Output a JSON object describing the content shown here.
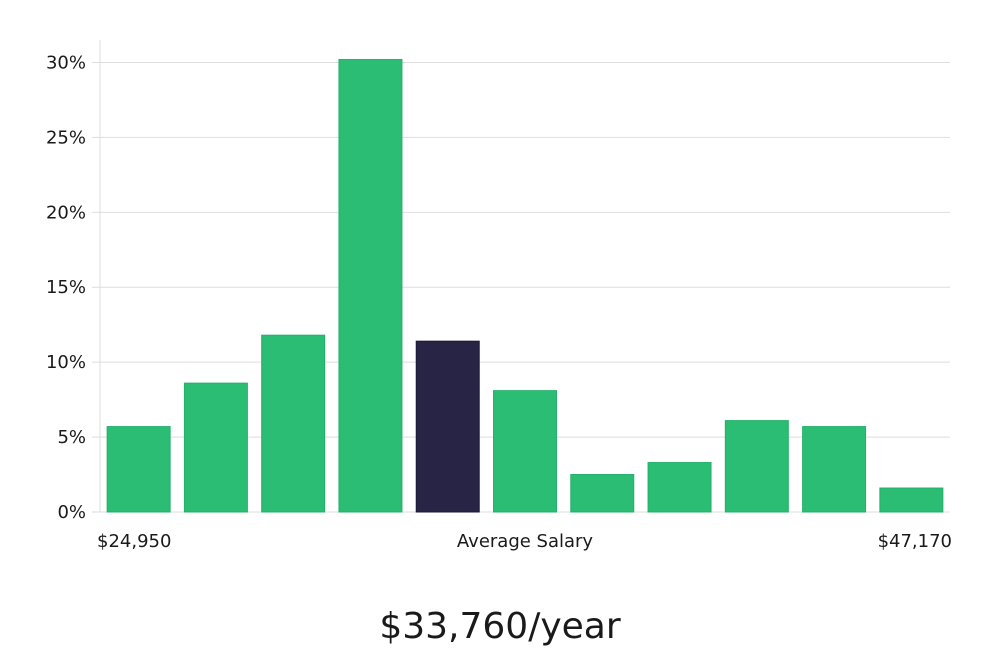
{
  "chart_data": {
    "type": "bar",
    "values": [
      5.7,
      8.6,
      11.8,
      30.2,
      11.4,
      8.1,
      2.5,
      3.3,
      6.1,
      5.7,
      1.6
    ],
    "highlight_index": 4,
    "ylim": [
      0,
      31.5
    ],
    "y_ticks": [
      {
        "value": 0,
        "label": "0%"
      },
      {
        "value": 5,
        "label": "5%"
      },
      {
        "value": 10,
        "label": "10%"
      },
      {
        "value": 15,
        "label": "15%"
      },
      {
        "value": 20,
        "label": "20%"
      },
      {
        "value": 25,
        "label": "25%"
      },
      {
        "value": 30,
        "label": "30%"
      }
    ],
    "x_labels": {
      "left": "$24,950",
      "center": "Average Salary",
      "right": "$47,170"
    },
    "grid": true,
    "colors": {
      "bar": "#2bbd74",
      "highlight": "#272445",
      "grid": "#dedede",
      "axis": "#dcdcdc"
    }
  },
  "summary": {
    "value": "$33,760/year"
  }
}
